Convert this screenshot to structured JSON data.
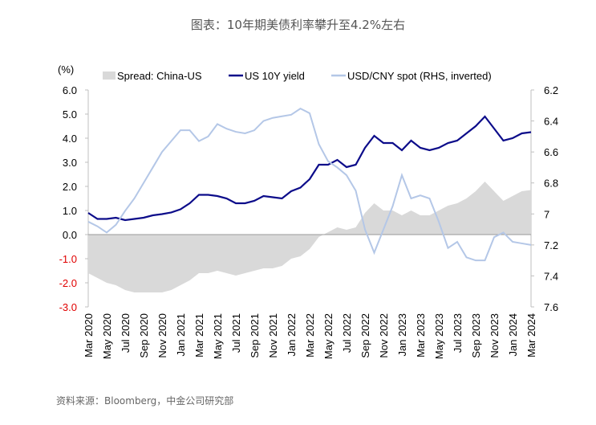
{
  "title": "图表：10年期美债利率攀升至4.2%左右",
  "source": "资料来源：Bloomberg，中金公司研究部",
  "chart_data": {
    "type": "line",
    "left_unit_label": "(%)",
    "left_ylim": [
      -3.0,
      6.0
    ],
    "left_ticks": [
      "6.0",
      "5.0",
      "4.0",
      "3.0",
      "2.0",
      "1.0",
      "0.0",
      "-1.0",
      "-2.0",
      "-3.0"
    ],
    "right_ylim_inverted": [
      6.2,
      7.6
    ],
    "right_ticks": [
      "6.2",
      "6.4",
      "6.6",
      "6.8",
      "7",
      "7.2",
      "7.4",
      "7.6"
    ],
    "x_tick_labels": [
      "Mar 2020",
      "May 2020",
      "Jul 2020",
      "Sep 2020",
      "Nov 2020",
      "Jan 2021",
      "Mar 2021",
      "May 2021",
      "Jul 2021",
      "Sep 2021",
      "Nov 2021",
      "Jan 2022",
      "Mar 2022",
      "May 2022",
      "Jul 2022",
      "Sep 2022",
      "Nov 2022",
      "Jan 2023",
      "Mar 2023",
      "May 2023",
      "Jul 2023",
      "Sep 2023",
      "Nov 2023",
      "Jan 2024",
      "Mar 2024"
    ],
    "x_start": "2020-03",
    "x_frequency": "monthly",
    "legend_position": "top",
    "series": [
      {
        "name": "Spread: China-US",
        "kind": "area",
        "axis": "left",
        "color": "#d9d9d9",
        "values": [
          -1.6,
          -1.8,
          -2.0,
          -2.1,
          -2.3,
          -2.4,
          -2.4,
          -2.4,
          -2.4,
          -2.3,
          -2.1,
          -1.9,
          -1.6,
          -1.6,
          -1.5,
          -1.6,
          -1.7,
          -1.6,
          -1.5,
          -1.4,
          -1.4,
          -1.3,
          -1.0,
          -0.9,
          -0.6,
          -0.1,
          0.1,
          0.3,
          0.2,
          0.3,
          0.9,
          1.3,
          1.0,
          1.0,
          0.8,
          1.0,
          0.8,
          0.8,
          1.0,
          1.2,
          1.3,
          1.5,
          1.8,
          2.2,
          1.8,
          1.4,
          1.6,
          1.8,
          1.85
        ]
      },
      {
        "name": "US 10Y yield",
        "kind": "line",
        "axis": "left",
        "color": "#0c0c8a",
        "values": [
          0.9,
          0.65,
          0.65,
          0.7,
          0.6,
          0.65,
          0.7,
          0.8,
          0.85,
          0.92,
          1.05,
          1.3,
          1.65,
          1.65,
          1.6,
          1.5,
          1.3,
          1.3,
          1.4,
          1.6,
          1.55,
          1.5,
          1.8,
          1.95,
          2.3,
          2.9,
          2.9,
          3.1,
          2.8,
          2.9,
          3.6,
          4.1,
          3.8,
          3.8,
          3.5,
          3.9,
          3.6,
          3.5,
          3.6,
          3.8,
          3.9,
          4.2,
          4.5,
          4.9,
          4.4,
          3.9,
          4.0,
          4.2,
          4.25
        ]
      },
      {
        "name": "USD/CNY spot (RHS, inverted)",
        "kind": "line",
        "axis": "right",
        "color": "#b4c7e7",
        "values": [
          7.05,
          7.08,
          7.12,
          7.07,
          6.98,
          6.9,
          6.8,
          6.7,
          6.6,
          6.53,
          6.46,
          6.46,
          6.53,
          6.5,
          6.42,
          6.45,
          6.47,
          6.48,
          6.46,
          6.4,
          6.38,
          6.37,
          6.36,
          6.32,
          6.35,
          6.55,
          6.66,
          6.7,
          6.75,
          6.85,
          7.1,
          7.25,
          7.1,
          6.95,
          6.75,
          6.9,
          6.88,
          6.9,
          7.05,
          7.22,
          7.18,
          7.28,
          7.3,
          7.3,
          7.15,
          7.12,
          7.18,
          7.19,
          7.2
        ]
      }
    ],
    "colors": {
      "negative_tick": "#e00000",
      "axis": "#bfbfbf"
    }
  }
}
